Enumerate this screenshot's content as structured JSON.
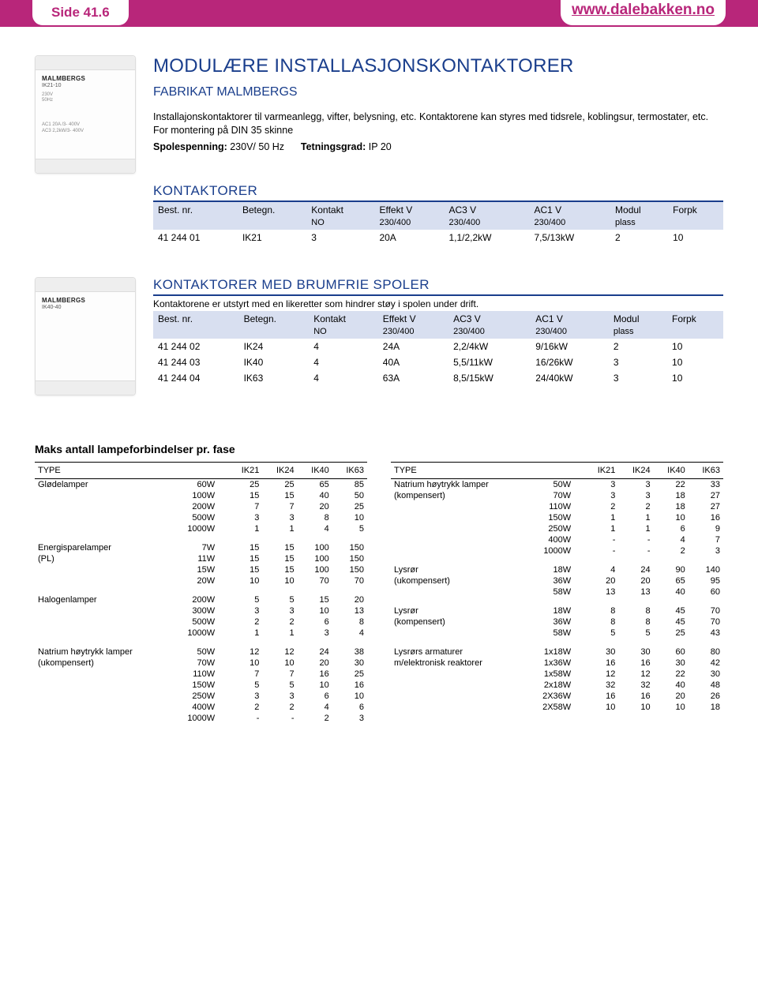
{
  "header": {
    "page_label": "Side 41.6",
    "url": "www.dalebakken.no"
  },
  "colors": {
    "brand_pink": "#b8267a",
    "brand_blue": "#1a3e8c",
    "header_row_bg": "#d8dff0"
  },
  "intro": {
    "title": "MODULÆRE INSTALLASJONSKONTAKTORER",
    "subtitle": "FABRIKAT MALMBERGS",
    "desc1": "Installajonskontaktorer til varmeanlegg, vifter, belysning, etc. Kontaktorene kan styres med tidsrele, koblingsur, termostater, etc. For montering på DIN 35 skinne",
    "spec_label_1": "Spolespenning:",
    "spec_val_1": "230V/ 50 Hz",
    "spec_label_2": "Tetningsgrad:",
    "spec_val_2": "IP 20"
  },
  "kontaktorer": {
    "heading": "KONTAKTORER",
    "columns": [
      "Best. nr.",
      "Betegn.",
      "Kontakt",
      "Effekt V",
      "AC3 V",
      "AC1 V",
      "Modul",
      "Forpk"
    ],
    "subcols": [
      "",
      "",
      "NO",
      "230/400",
      "230/400",
      "230/400",
      "plass",
      ""
    ],
    "rows": [
      [
        "41 244 01",
        "IK21",
        "3",
        "20A",
        "1,1/2,2kW",
        "7,5/13kW",
        "2",
        "10"
      ]
    ]
  },
  "brumfrie": {
    "heading": "KONTAKTORER MED BRUMFRIE SPOLER",
    "note": "Kontaktorene er utstyrt med en likeretter som hindrer støy i spolen under drift.",
    "columns": [
      "Best. nr.",
      "Betegn.",
      "Kontakt",
      "Effekt V",
      "AC3 V",
      "AC1 V",
      "Modul",
      "Forpk"
    ],
    "subcols": [
      "",
      "",
      "NO",
      "230/400",
      "230/400",
      "230/400",
      "plass",
      ""
    ],
    "rows": [
      [
        "41 244 02",
        "IK24",
        "4",
        "24A",
        "2,2/4kW",
        "9/16kW",
        "2",
        "10"
      ],
      [
        "41 244 03",
        "IK40",
        "4",
        "40A",
        "5,5/11kW",
        "16/26kW",
        "3",
        "10"
      ],
      [
        "41 244 04",
        "IK63",
        "4",
        "63A",
        "8,5/15kW",
        "24/40kW",
        "3",
        "10"
      ]
    ]
  },
  "lamp": {
    "title": "Maks antall lampeforbindelser pr. fase",
    "head": [
      "TYPE",
      "",
      "IK21",
      "IK24",
      "IK40",
      "IK63"
    ],
    "left": [
      {
        "name": "Glødelamper",
        "rows": [
          [
            "60W",
            "25",
            "25",
            "65",
            "85"
          ],
          [
            "100W",
            "15",
            "15",
            "40",
            "50"
          ],
          [
            "200W",
            "7",
            "7",
            "20",
            "25"
          ],
          [
            "500W",
            "3",
            "3",
            "8",
            "10"
          ],
          [
            "1000W",
            "1",
            "1",
            "4",
            "5"
          ]
        ]
      },
      {
        "name": "Energisparelamper (PL)",
        "rows": [
          [
            "7W",
            "15",
            "15",
            "100",
            "150"
          ],
          [
            "11W",
            "15",
            "15",
            "100",
            "150"
          ],
          [
            "15W",
            "15",
            "15",
            "100",
            "150"
          ],
          [
            "20W",
            "10",
            "10",
            "70",
            "70"
          ]
        ]
      },
      {
        "name": "Halogenlamper",
        "rows": [
          [
            "200W",
            "5",
            "5",
            "15",
            "20"
          ],
          [
            "300W",
            "3",
            "3",
            "10",
            "13"
          ],
          [
            "500W",
            "2",
            "2",
            "6",
            "8"
          ],
          [
            "1000W",
            "1",
            "1",
            "3",
            "4"
          ]
        ]
      },
      {
        "name": "Natrium høytrykk lamper (ukompensert)",
        "rows": [
          [
            "50W",
            "12",
            "12",
            "24",
            "38"
          ],
          [
            "70W",
            "10",
            "10",
            "20",
            "30"
          ],
          [
            "110W",
            "7",
            "7",
            "16",
            "25"
          ],
          [
            "150W",
            "5",
            "5",
            "10",
            "16"
          ],
          [
            "250W",
            "3",
            "3",
            "6",
            "10"
          ],
          [
            "400W",
            "2",
            "2",
            "4",
            "6"
          ],
          [
            "1000W",
            "-",
            "-",
            "2",
            "3"
          ]
        ]
      }
    ],
    "right": [
      {
        "name": "Natrium høytrykk lamper (kompensert)",
        "rows": [
          [
            "50W",
            "3",
            "3",
            "22",
            "33"
          ],
          [
            "70W",
            "3",
            "3",
            "18",
            "27"
          ],
          [
            "110W",
            "2",
            "2",
            "18",
            "27"
          ],
          [
            "150W",
            "1",
            "1",
            "10",
            "16"
          ],
          [
            "250W",
            "1",
            "1",
            "6",
            "9"
          ],
          [
            "400W",
            "-",
            "-",
            "4",
            "7"
          ],
          [
            "1000W",
            "-",
            "-",
            "2",
            "3"
          ]
        ]
      },
      {
        "name": "Lysrør (ukompensert)",
        "rows": [
          [
            "18W",
            "4",
            "24",
            "90",
            "140"
          ],
          [
            "36W",
            "20",
            "20",
            "65",
            "95"
          ],
          [
            "58W",
            "13",
            "13",
            "40",
            "60"
          ]
        ]
      },
      {
        "name": "Lysrør (kompensert)",
        "rows": [
          [
            "18W",
            "8",
            "8",
            "45",
            "70"
          ],
          [
            "36W",
            "8",
            "8",
            "45",
            "70"
          ],
          [
            "58W",
            "5",
            "5",
            "25",
            "43"
          ]
        ]
      },
      {
        "name": "Lysrørs armaturer m/elektronisk reaktorer",
        "rows": [
          [
            "1x18W",
            "30",
            "30",
            "60",
            "80"
          ],
          [
            "1x36W",
            "16",
            "16",
            "30",
            "42"
          ],
          [
            "1x58W",
            "12",
            "12",
            "22",
            "30"
          ],
          [
            "2x18W",
            "32",
            "32",
            "40",
            "48"
          ],
          [
            "2X36W",
            "16",
            "16",
            "20",
            "26"
          ],
          [
            "2X58W",
            "10",
            "10",
            "10",
            "18"
          ]
        ]
      }
    ]
  },
  "device_labels": {
    "brand": "MALMBERGS",
    "model1": "IK21-10",
    "model2": "IK40-40"
  }
}
